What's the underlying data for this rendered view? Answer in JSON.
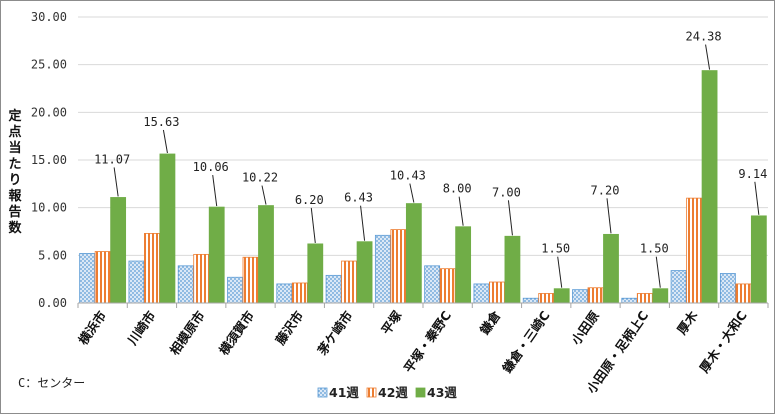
{
  "chart_data": {
    "type": "bar",
    "ylabel": "定点当たり報告数",
    "ylim": [
      0,
      30
    ],
    "yticks": [
      "0.00",
      "5.00",
      "10.00",
      "15.00",
      "20.00",
      "25.00",
      "30.00"
    ],
    "grid": true,
    "legend_position": "bottom",
    "note": "C：センター",
    "categories": [
      "横浜市",
      "川崎市",
      "相模原市",
      "横須賀市",
      "藤沢市",
      "茅ケ崎市",
      "平塚",
      "平塚・秦野C",
      "鎌倉",
      "鎌倉・三崎C",
      "小田原",
      "小田原・足柄上C",
      "厚木",
      "厚木・大和C"
    ],
    "series": [
      {
        "name": "41週",
        "color": "#5b9bd5",
        "pattern": "dots",
        "values": [
          5.2,
          4.4,
          3.9,
          2.7,
          2.0,
          2.9,
          7.1,
          3.9,
          2.0,
          0.5,
          1.4,
          0.5,
          3.4,
          3.1
        ]
      },
      {
        "name": "42週",
        "color": "#ed7d31",
        "pattern": "stripes",
        "values": [
          5.4,
          7.3,
          5.1,
          4.8,
          2.1,
          4.4,
          7.7,
          3.6,
          2.2,
          1.0,
          1.6,
          1.0,
          11.0,
          2.0
        ]
      },
      {
        "name": "43週",
        "color": "#70ad47",
        "pattern": "solid",
        "values": [
          11.07,
          15.63,
          10.06,
          10.22,
          6.2,
          6.43,
          10.43,
          8.0,
          7.0,
          1.5,
          7.2,
          1.5,
          24.38,
          9.14
        ]
      }
    ],
    "data_labels": [
      "11.07",
      "15.63",
      "10.06",
      "10.22",
      "6.20",
      "6.43",
      "10.43",
      "8.00",
      "7.00",
      "1.50",
      "7.20",
      "1.50",
      "24.38",
      "9.14"
    ]
  }
}
